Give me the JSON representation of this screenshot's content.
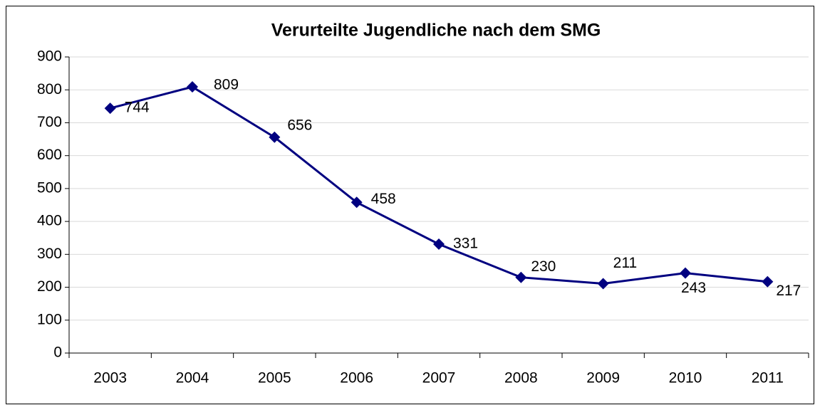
{
  "chart_data": {
    "type": "line",
    "title": "Verurteilte Jugendliche nach dem SMG",
    "categories": [
      "2003",
      "2004",
      "2005",
      "2006",
      "2007",
      "2008",
      "2009",
      "2010",
      "2011"
    ],
    "values": [
      744,
      809,
      656,
      458,
      331,
      230,
      211,
      243,
      217
    ],
    "color": "#000080",
    "ylim": [
      0,
      900
    ],
    "yticks": [
      0,
      100,
      200,
      300,
      400,
      500,
      600,
      700,
      800,
      900
    ],
    "grid": true
  }
}
